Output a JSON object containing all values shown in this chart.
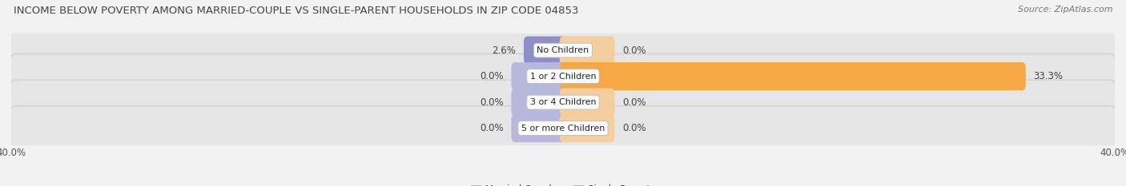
{
  "title": "INCOME BELOW POVERTY AMONG MARRIED-COUPLE VS SINGLE-PARENT HOUSEHOLDS IN ZIP CODE 04853",
  "source": "Source: ZipAtlas.com",
  "categories": [
    "No Children",
    "1 or 2 Children",
    "3 or 4 Children",
    "5 or more Children"
  ],
  "married_values": [
    2.6,
    0.0,
    0.0,
    0.0
  ],
  "single_values": [
    0.0,
    33.3,
    0.0,
    0.0
  ],
  "married_color": "#8f8fc8",
  "single_color": "#f5a843",
  "married_stub_color": "#b8b8dd",
  "single_stub_color": "#f5ceA0",
  "x_min": -40.0,
  "x_max": 40.0,
  "x_ticks_left": -40.0,
  "x_ticks_right": 40.0,
  "background_color": "#f2f2f2",
  "row_bg_color": "#e6e6e6",
  "row_border_color": "#cccccc",
  "title_fontsize": 9.5,
  "source_fontsize": 8,
  "label_fontsize": 8.5,
  "category_fontsize": 8,
  "legend_fontsize": 8.5,
  "bar_height": 0.58,
  "min_stub": 3.5,
  "tick_label_color": "#555555",
  "value_label_color": "#444444"
}
